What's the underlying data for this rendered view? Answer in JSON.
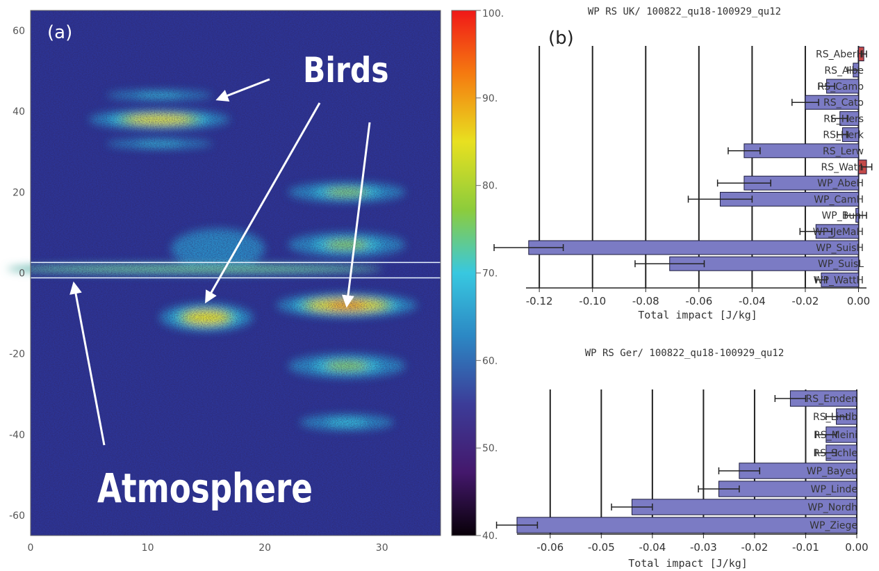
{
  "chart_data": [
    {
      "type": "heatmap",
      "panel_label": "(a)",
      "xlabel": "",
      "ylabel": "",
      "title": "",
      "xlim": [
        0,
        35
      ],
      "ylim": [
        -65,
        65
      ],
      "x_ticks": [
        0,
        10,
        20,
        30
      ],
      "y_ticks": [
        60,
        40,
        20,
        0,
        -20,
        -40,
        -60
      ],
      "colorbar": {
        "min": 40,
        "max": 100,
        "ticks": [
          "100.",
          "90.",
          "80.",
          "70.",
          "60.",
          "50.",
          "40."
        ],
        "tick_values": [
          100,
          90,
          80,
          70,
          60,
          50,
          40
        ]
      },
      "annotations": [
        {
          "text": "Birds",
          "pointer_targets": [
            [
              16,
              43
            ],
            [
              15,
              -7
            ],
            [
              27,
              -8
            ]
          ]
        },
        {
          "text": "Atmosphere",
          "pointer_targets": [
            [
              3.7,
              -2
            ]
          ]
        }
      ],
      "features": [
        {
          "kind": "bird_echo",
          "x_center": 11,
          "y_center": 38,
          "x_half_width": 6,
          "y_half_width": 2.5,
          "peak": 95
        },
        {
          "kind": "bird_echo",
          "x_center": 11,
          "y_center": 44,
          "x_half_width": 4.5,
          "y_half_width": 1.2,
          "peak": 76
        },
        {
          "kind": "bird_echo",
          "x_center": 11,
          "y_center": 32,
          "x_half_width": 4.5,
          "y_half_width": 1.2,
          "peak": 74
        },
        {
          "kind": "bird_echo",
          "x_center": 27,
          "y_center": -8,
          "x_half_width": 6,
          "y_half_width": 3,
          "peak": 100
        },
        {
          "kind": "bird_echo",
          "x_center": 15,
          "y_center": -11,
          "x_half_width": 4,
          "y_half_width": 3.5,
          "peak": 92
        },
        {
          "kind": "bird_echo",
          "x_center": 27,
          "y_center": 20,
          "x_half_width": 5,
          "y_half_width": 2.5,
          "peak": 82
        },
        {
          "kind": "bird_echo",
          "x_center": 27,
          "y_center": 7,
          "x_half_width": 5,
          "y_half_width": 3,
          "peak": 80
        },
        {
          "kind": "bird_echo",
          "x_center": 27,
          "y_center": -23,
          "x_half_width": 5,
          "y_half_width": 3,
          "peak": 82
        },
        {
          "kind": "bird_echo",
          "x_center": 27,
          "y_center": -37,
          "x_half_width": 4,
          "y_half_width": 2,
          "peak": 76
        },
        {
          "kind": "bird_echo",
          "x_center": 16,
          "y_center": 6,
          "x_half_width": 4,
          "y_half_width": 5,
          "peak": 72
        },
        {
          "kind": "atmosphere",
          "x_center": 14,
          "y_center": 1,
          "x_half_width": 16,
          "y_half_width": 1.5,
          "peak": 80
        }
      ]
    },
    {
      "type": "bar",
      "orientation": "horizontal",
      "panel_label": "(b)",
      "title": "WP RS UK/ 100822_qu18-100929_qu12",
      "xlabel": "Total impact [J/kg]",
      "xlim": [
        -0.125,
        0.003
      ],
      "x_ticks": [
        -0.12,
        -0.1,
        -0.08,
        -0.06,
        -0.04,
        -0.02,
        0.0
      ],
      "x_tick_labels": [
        "-0.12",
        "-0.10",
        "-0.08",
        "-0.06",
        "-0.04",
        "-0.02",
        "0.00"
      ],
      "categories": [
        "RS_AberH",
        "RS_Albe",
        "RS_Camb",
        "RS_Cato",
        "RS_Hers",
        "RS_Herk",
        "RS_Lerw",
        "RS_Watn",
        "WP_AbeH",
        "WP_CamH",
        "WP_Bunl",
        "WP_JeMaH",
        "WP_SuisH",
        "WP_SuisL",
        "WP_WattH"
      ],
      "values": [
        0.002,
        -0.002,
        -0.012,
        -0.02,
        -0.007,
        -0.006,
        -0.043,
        0.003,
        -0.043,
        -0.052,
        -0.001,
        -0.016,
        -0.124,
        -0.071,
        -0.014
      ],
      "errors": [
        0.001,
        0.002,
        0.003,
        0.005,
        0.003,
        0.002,
        0.006,
        0.002,
        0.01,
        0.012,
        0.004,
        0.006,
        0.013,
        0.013,
        0.002
      ],
      "colors": [
        "#c44a4a",
        "#7b7bc4",
        "#7b7bc4",
        "#7b7bc4",
        "#7b7bc4",
        "#7b7bc4",
        "#7b7bc4",
        "#c44a4a",
        "#7b7bc4",
        "#7b7bc4",
        "#7b7bc4",
        "#7b7bc4",
        "#7b7bc4",
        "#7b7bc4",
        "#7b7bc4"
      ]
    },
    {
      "type": "bar",
      "orientation": "horizontal",
      "title": "WP RS Ger/ 100822_qu18-100929_qu12",
      "xlabel": "Total impact [J/kg]",
      "xlim": [
        -0.0665,
        0.0
      ],
      "x_ticks": [
        -0.06,
        -0.05,
        -0.04,
        -0.03,
        -0.02,
        -0.01,
        0.0
      ],
      "x_tick_labels": [
        "-0.06",
        "-0.05",
        "-0.04",
        "-0.03",
        "-0.02",
        "-0.01",
        "0.00"
      ],
      "categories": [
        "RS_Emden",
        "RS_Lindb",
        "RS_Meini",
        "RS_Schle",
        "WP_Bayeu",
        "WP_Linde",
        "WP_Nordh",
        "WP_Ziege"
      ],
      "values": [
        -0.013,
        -0.004,
        -0.006,
        -0.006,
        -0.023,
        -0.027,
        -0.044,
        -0.0665
      ],
      "errors": [
        0.003,
        0.002,
        0.002,
        0.002,
        0.004,
        0.004,
        0.004,
        0.004
      ],
      "colors": [
        "#7b7bc4",
        "#7b7bc4",
        "#7b7bc4",
        "#7b7bc4",
        "#7b7bc4",
        "#7b7bc4",
        "#7b7bc4",
        "#7b7bc4"
      ]
    }
  ]
}
